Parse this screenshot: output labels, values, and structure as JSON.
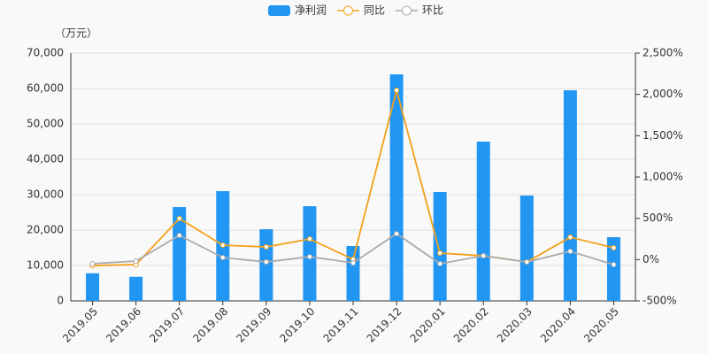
{
  "chart_data": {
    "type": "bar_line",
    "unit_label": "（万元）",
    "categories": [
      "2019.05",
      "2019.06",
      "2019.07",
      "2019.08",
      "2019.09",
      "2019.10",
      "2019.11",
      "2019.12",
      "2020.01",
      "2020.02",
      "2020.03",
      "2020.04",
      "2020.05"
    ],
    "series": [
      {
        "name": "净利润",
        "type": "bar",
        "color": "#2196f3",
        "values": [
          7800,
          6800,
          26500,
          31000,
          20250,
          26750,
          15500,
          64000,
          30750,
          45000,
          29750,
          59500,
          18000
        ]
      },
      {
        "name": "同比",
        "type": "line",
        "axis": "y2",
        "color": "#f5a01a",
        "values": [
          -72,
          -61,
          496,
          175,
          153,
          250,
          3,
          2050,
          78,
          46,
          -29,
          271,
          143
        ]
      },
      {
        "name": "环比",
        "type": "line",
        "axis": "y2",
        "color": "#aaaaaa",
        "values": [
          -50,
          -18,
          293,
          25,
          -29,
          35,
          -40,
          314,
          -50,
          46,
          -29,
          100,
          -61
        ]
      }
    ],
    "ylim": [
      0,
      70000
    ],
    "yticks": [
      0,
      {
        "value": 10000,
        "label": "10,000"
      },
      {
        "value": 20000,
        "label": "20,000"
      },
      {
        "value": 30000,
        "label": "30,000"
      },
      {
        "value": 40000,
        "label": "40,000"
      },
      {
        "value": 50000,
        "label": "50,000"
      },
      {
        "value": 60000,
        "label": "60,000"
      },
      {
        "value": 70000,
        "label": "70,000"
      }
    ],
    "y2lim": [
      -500,
      2500
    ],
    "y2ticks": [
      {
        "value": -500,
        "label": "-500%"
      },
      {
        "value": 0,
        "label": "0%"
      },
      {
        "value": 500,
        "label": "500%"
      },
      {
        "value": 1000,
        "label": "1,000%"
      },
      {
        "value": 1500,
        "label": "1,500%"
      },
      {
        "value": 2000,
        "label": "2,000%"
      },
      {
        "value": 2500,
        "label": "2,500%"
      }
    ],
    "grid": true
  }
}
